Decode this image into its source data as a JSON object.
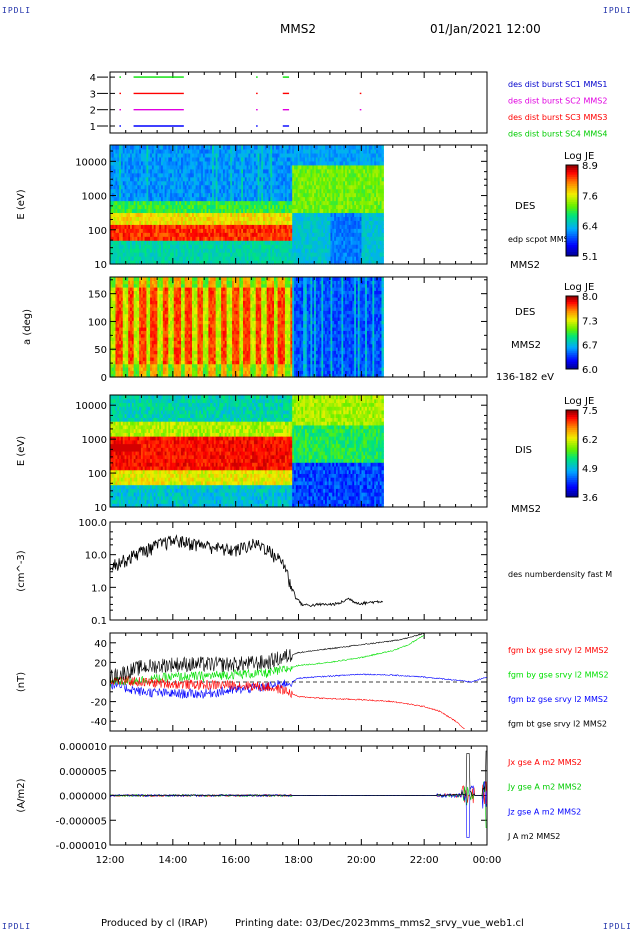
{
  "header": {
    "corner_tl": "IPDLI",
    "corner_tr": "IPDLI",
    "corner_bl": "IPDLI",
    "corner_br": "IPDLI",
    "spacecraft": "MMS2",
    "date": "01/Jan/2021 12:00"
  },
  "footer": {
    "produced_by": "Produced by cl (IRAP)",
    "printing_date": "Printing date: 03/Dec/2023",
    "filename": "mms_mms2_srvy_vue_web1.cl"
  },
  "colors": {
    "red": "#ff0000",
    "green": "#00e000",
    "blue": "#0000ff",
    "magenta": "#e000e0",
    "black": "#000000"
  },
  "chart_data": [
    {
      "type": "line",
      "panel": "data availability",
      "yticks": [
        "1",
        "2",
        "3",
        "4"
      ],
      "labels": [
        {
          "text": "des dist burst SC1 MMS1",
          "color": "#0000cc"
        },
        {
          "text": "des dist burst SC2 MMS2",
          "color": "#e000e0"
        },
        {
          "text": "des dist burst SC3 MMS3",
          "color": "#ff0000"
        },
        {
          "text": "des dist burst SC4 MMS4",
          "color": "#00cc00"
        }
      ],
      "segments": [
        {
          "row": 4,
          "color": "#00e000",
          "ranges": [
            [
              12.3,
              12.35
            ],
            [
              12.75,
              14.35
            ],
            [
              16.65,
              16.7
            ],
            [
              17.5,
              17.7
            ]
          ]
        },
        {
          "row": 3,
          "color": "#ff0000",
          "ranges": [
            [
              12.3,
              12.35
            ],
            [
              12.75,
              14.35
            ],
            [
              16.65,
              16.7
            ],
            [
              17.5,
              17.7
            ],
            [
              19.95,
              20.0
            ]
          ]
        },
        {
          "row": 2,
          "color": "#e000e0",
          "ranges": [
            [
              12.3,
              12.35
            ],
            [
              12.75,
              14.35
            ],
            [
              16.65,
              16.7
            ],
            [
              17.5,
              17.7
            ],
            [
              19.95,
              20.0
            ]
          ]
        },
        {
          "row": 1,
          "color": "#0000ff",
          "ranges": [
            [
              12.3,
              12.35
            ],
            [
              12.75,
              14.35
            ],
            [
              16.65,
              16.7
            ],
            [
              17.5,
              17.7
            ]
          ]
        }
      ]
    },
    {
      "type": "heatmap",
      "panel": "DES energy spectrogram",
      "ylabel": "E (eV)",
      "yticks": [
        "10",
        "100",
        "1000",
        "10000"
      ],
      "ylog": true,
      "ylim": [
        10,
        30000
      ],
      "data_end_hour": 20.7,
      "right_labels": [
        "DES",
        "edp scpot MMS2",
        "MMS2"
      ],
      "colorbar": {
        "title": "Log JE",
        "ticks": [
          "8.9",
          "7.6",
          "6.4",
          "5.1"
        ],
        "range": [
          5.1,
          8.9
        ]
      }
    },
    {
      "type": "heatmap",
      "panel": "DES pitch angle",
      "ylabel": "a (deg)",
      "yticks": [
        "0",
        "50",
        "100",
        "150"
      ],
      "ylim": [
        0,
        180
      ],
      "data_end_hour": 20.7,
      "right_labels": [
        "DES",
        "MMS2",
        "136-182 eV"
      ],
      "colorbar": {
        "title": "Log JE",
        "ticks": [
          "8.0",
          "7.3",
          "6.7",
          "6.0"
        ],
        "range": [
          6.0,
          8.0
        ]
      }
    },
    {
      "type": "heatmap",
      "panel": "DIS energy spectrogram",
      "ylabel": "E (eV)",
      "yticks": [
        "10",
        "100",
        "1000",
        "10000"
      ],
      "ylog": true,
      "ylim": [
        10,
        20000
      ],
      "data_end_hour": 20.7,
      "right_labels": [
        "DIS",
        "MMS2"
      ],
      "colorbar": {
        "title": "Log JE",
        "ticks": [
          "7.5",
          "6.2",
          "4.9",
          "3.6"
        ],
        "range": [
          3.6,
          7.5
        ]
      }
    },
    {
      "type": "line",
      "panel": "density",
      "ylabel": "(cm^-3)",
      "yticks": [
        "0.1",
        "1.0",
        "10.0",
        "100.0"
      ],
      "ylog": true,
      "ylim": [
        0.1,
        100
      ],
      "series": [
        {
          "name": "des numberdensity fast M",
          "color": "#000000",
          "x": [
            12.0,
            12.3,
            12.6,
            12.9,
            13.2,
            13.5,
            13.8,
            14.1,
            14.4,
            14.7,
            15.0,
            15.3,
            15.6,
            16.0,
            16.3,
            16.6,
            16.9,
            17.2,
            17.5,
            17.7,
            17.9,
            18.1,
            18.4,
            18.7,
            19.0,
            19.3,
            19.6,
            19.8,
            20.0,
            20.3,
            20.7
          ],
          "y": [
            5,
            6,
            8,
            12,
            15,
            20,
            25,
            28,
            25,
            22,
            20,
            18,
            15,
            14,
            18,
            22,
            18,
            10,
            6,
            1.5,
            0.5,
            0.3,
            0.28,
            0.3,
            0.3,
            0.32,
            0.45,
            0.35,
            0.32,
            0.35,
            0.38
          ]
        }
      ]
    },
    {
      "type": "line",
      "panel": "magnetic field",
      "ylabel": "(nT)",
      "yticks": [
        "-40",
        "-20",
        "0",
        "20",
        "40"
      ],
      "ylim": [
        -50,
        50
      ],
      "series": [
        {
          "name": "fgm bx gse srvy l2 MMS2",
          "color": "#ff0000",
          "x": [
            12,
            13,
            14,
            15,
            16,
            17,
            17.5,
            17.8,
            18,
            19,
            20,
            21,
            22,
            22.5,
            23,
            23.3
          ],
          "y": [
            2,
            0,
            -2,
            -3,
            -3,
            -5,
            -8,
            -12,
            -15,
            -17,
            -18,
            -20,
            -25,
            -30,
            -40,
            -48
          ]
        },
        {
          "name": "fgm by gse srvy l2 MMS2",
          "color": "#00e000",
          "x": [
            12,
            13,
            14,
            15,
            16,
            17,
            17.5,
            17.8,
            18,
            19,
            20,
            21,
            21.5,
            22
          ],
          "y": [
            0,
            2,
            5,
            6,
            8,
            9,
            12,
            15,
            17,
            20,
            25,
            32,
            38,
            48
          ]
        },
        {
          "name": "fgm bz gse srvy l2 MMS2",
          "color": "#0000ff",
          "x": [
            12,
            13,
            14,
            15,
            16,
            17,
            17.5,
            17.8,
            18,
            19,
            20,
            21,
            22,
            23,
            23.5,
            24
          ],
          "y": [
            -2,
            -10,
            -12,
            -12,
            -8,
            -5,
            -2,
            0,
            4,
            6,
            8,
            7,
            5,
            2,
            0,
            5
          ]
        },
        {
          "name": "fgm bt gse srvy l2 MMS2",
          "color": "#000000",
          "x": [
            12,
            13,
            14,
            15,
            16,
            17,
            17.5,
            17.8,
            18,
            19,
            20,
            21,
            21.5,
            22
          ],
          "y": [
            5,
            15,
            18,
            18,
            18,
            20,
            25,
            28,
            30,
            34,
            38,
            42,
            45,
            50
          ]
        }
      ]
    },
    {
      "type": "line",
      "panel": "current density",
      "ylabel": "(A/m2)",
      "yticks": [
        "-0.000010",
        "-0.000005",
        "0.000000",
        "0.000005",
        "0.000010"
      ],
      "ylim": [
        -1e-05,
        1e-05
      ],
      "xticks": [
        "12:00",
        "14:00",
        "16:00",
        "18:00",
        "20:00",
        "22:00",
        "00:00"
      ],
      "series": [
        {
          "name": "Jx gse A m2 MMS2",
          "color": "#ff0000"
        },
        {
          "name": "Jy gse A m2 MMS2",
          "color": "#00cc00"
        },
        {
          "name": "Jz gse A m2 MMS2",
          "color": "#0000ff"
        },
        {
          "name": "J A m2 MMS2",
          "color": "#000000",
          "x": [
            12,
            22.5,
            23,
            23.2,
            23.3,
            23.4,
            23.5,
            23.7,
            24
          ],
          "y": [
            0,
            2e-07,
            1e-06,
            2e-06,
            6e-06,
            9e-06,
            3e-06,
            1e-06,
            8e-06
          ]
        }
      ]
    }
  ]
}
